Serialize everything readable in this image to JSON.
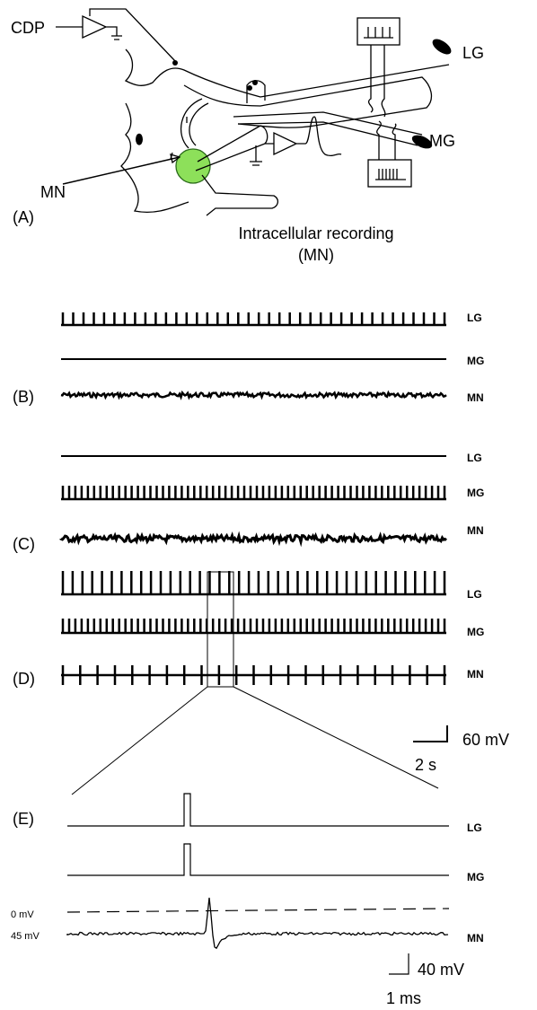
{
  "panel_a": {
    "amplifier": "CDP",
    "nerve_lg": "LG",
    "nerve_mg": "MG",
    "neuron": "MN",
    "label": "(A)",
    "recording": "Intracellular recording",
    "recording_target": "(MN)"
  },
  "panel_b": {
    "label": "(B)",
    "traces": [
      "LG",
      "MG",
      "MN"
    ]
  },
  "panel_c": {
    "label": "(C)",
    "traces": [
      "LG",
      "MG",
      "MN"
    ]
  },
  "panel_d": {
    "label": "(D)",
    "traces": [
      "LG",
      "MG",
      "MN"
    ],
    "scale_voltage": "60 mV",
    "scale_time": "2 s"
  },
  "panel_e": {
    "label": "(E)",
    "traces": [
      "LG",
      "MG",
      "MN"
    ],
    "zero_level": "0 mV",
    "rest_level": "45 mV",
    "scale_voltage": "40 mV",
    "scale_time": "1 ms"
  }
}
